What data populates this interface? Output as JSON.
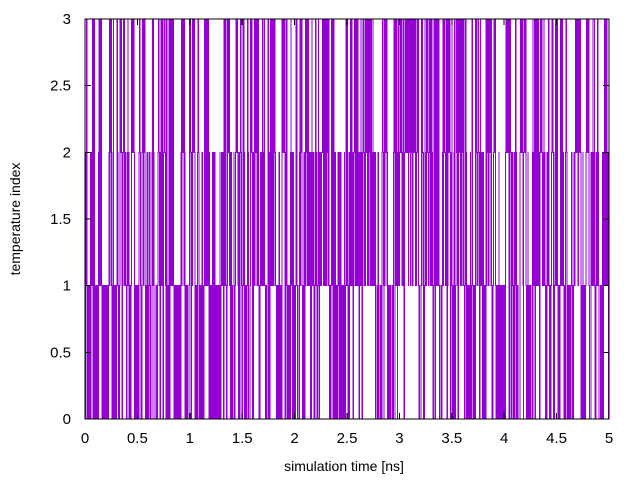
{
  "chart_data": {
    "type": "line",
    "xlabel": "simulation time [ns]",
    "ylabel": "temperature index",
    "xlim": [
      0,
      5
    ],
    "ylim": [
      0,
      3
    ],
    "xticks": [
      0,
      0.5,
      1,
      1.5,
      2,
      2.5,
      3,
      3.5,
      4,
      4.5,
      5
    ],
    "yticks": [
      0,
      0.5,
      1,
      1.5,
      2,
      2.5,
      3
    ],
    "grid": false,
    "legend": "none",
    "series": [
      {
        "color": "#9400d3",
        "sample_interval_ns": 0.002,
        "levels": [
          0,
          1,
          2,
          3
        ],
        "x": [
          0,
          0.002,
          0.004,
          0.006,
          0.008,
          0.01,
          0.012,
          0.014,
          0.016,
          0.018,
          0.02
        ],
        "values": [
          3,
          2,
          1,
          0,
          1,
          2,
          3,
          2,
          3,
          2,
          1
        ]
      }
    ]
  }
}
